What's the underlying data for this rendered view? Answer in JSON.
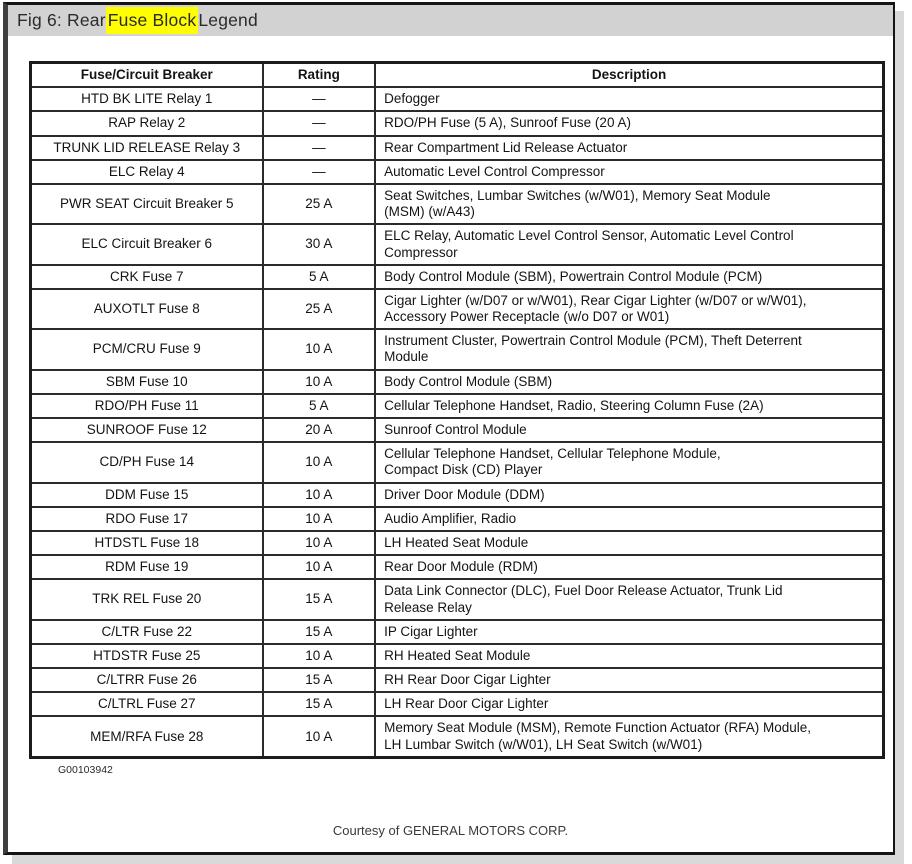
{
  "title": {
    "prefix": "Fig 6: Rear ",
    "highlight": "Fuse Block",
    "suffix": " Legend",
    "highlight_color": "#ffff00",
    "bar_color": "#d2d2d2"
  },
  "table": {
    "columns": [
      "Fuse/Circuit Breaker",
      "Rating",
      "Description"
    ],
    "rows": [
      {
        "fuse": "HTD BK LITE Relay 1",
        "rating": "—",
        "description": "Defogger"
      },
      {
        "fuse": "RAP Relay 2",
        "rating": "—",
        "description": "RDO/PH Fuse (5 A), Sunroof Fuse (20 A)"
      },
      {
        "fuse": "TRUNK LID RELEASE Relay 3",
        "rating": "—",
        "description": "Rear Compartment Lid Release Actuator"
      },
      {
        "fuse": "ELC Relay 4",
        "rating": "—",
        "description": "Automatic Level Control Compressor"
      },
      {
        "fuse": "PWR SEAT Circuit Breaker 5",
        "rating": "25 A",
        "description": "Seat Switches, Lumbar Switches (w/W01), Memory Seat Module\n(MSM) (w/A43)"
      },
      {
        "fuse": "ELC Circuit Breaker 6",
        "rating": "30 A",
        "description": "ELC Relay, Automatic Level Control Sensor, Automatic Level Control\nCompressor"
      },
      {
        "fuse": "CRK Fuse 7",
        "rating": "5 A",
        "description": "Body Control Module (SBM), Powertrain Control Module (PCM)"
      },
      {
        "fuse": "AUXOTLT Fuse 8",
        "rating": "25 A",
        "description": "Cigar Lighter (w/D07 or w/W01), Rear Cigar Lighter (w/D07 or w/W01),\nAccessory Power Receptacle (w/o D07 or W01)"
      },
      {
        "fuse": "PCM/CRU Fuse 9",
        "rating": "10 A",
        "description": "Instrument Cluster, Powertrain Control Module (PCM), Theft Deterrent\nModule"
      },
      {
        "fuse": "SBM Fuse 10",
        "rating": "10 A",
        "description": "Body Control Module (SBM)"
      },
      {
        "fuse": "RDO/PH Fuse 11",
        "rating": "5 A",
        "description": "Cellular Telephone Handset, Radio, Steering Column Fuse (2A)"
      },
      {
        "fuse": "SUNROOF Fuse 12",
        "rating": "20 A",
        "description": "Sunroof Control Module"
      },
      {
        "fuse": "CD/PH Fuse 14",
        "rating": "10 A",
        "description": "Cellular Telephone Handset, Cellular Telephone Module,\nCompact Disk (CD) Player"
      },
      {
        "fuse": "DDM Fuse 15",
        "rating": "10 A",
        "description": "Driver Door Module (DDM)"
      },
      {
        "fuse": "RDO Fuse 17",
        "rating": "10 A",
        "description": "Audio Amplifier, Radio"
      },
      {
        "fuse": "HTDSTL Fuse 18",
        "rating": "10 A",
        "description": "LH Heated Seat Module"
      },
      {
        "fuse": "RDM Fuse 19",
        "rating": "10 A",
        "description": "Rear Door Module (RDM)"
      },
      {
        "fuse": "TRK REL Fuse 20",
        "rating": "15 A",
        "description": "Data Link Connector (DLC), Fuel Door Release Actuator, Trunk Lid\nRelease Relay"
      },
      {
        "fuse": "C/LTR Fuse 22",
        "rating": "15 A",
        "description": "IP Cigar Lighter"
      },
      {
        "fuse": "HTDSTR Fuse 25",
        "rating": "10 A",
        "description": "RH Heated Seat Module"
      },
      {
        "fuse": "C/LTRR Fuse 26",
        "rating": "15 A",
        "description": "RH Rear Door Cigar Lighter"
      },
      {
        "fuse": "C/LTRL Fuse 27",
        "rating": "15 A",
        "description": "LH Rear Door Cigar Lighter"
      },
      {
        "fuse": "MEM/RFA Fuse 28",
        "rating": "10 A",
        "description": "Memory Seat Module (MSM), Remote Function Actuator (RFA) Module,\nLH Lumbar Switch (w/W01), LH Seat Switch (w/W01)"
      }
    ]
  },
  "footnote": "G00103942",
  "courtesy": "Courtesy of GENERAL MOTORS CORP."
}
